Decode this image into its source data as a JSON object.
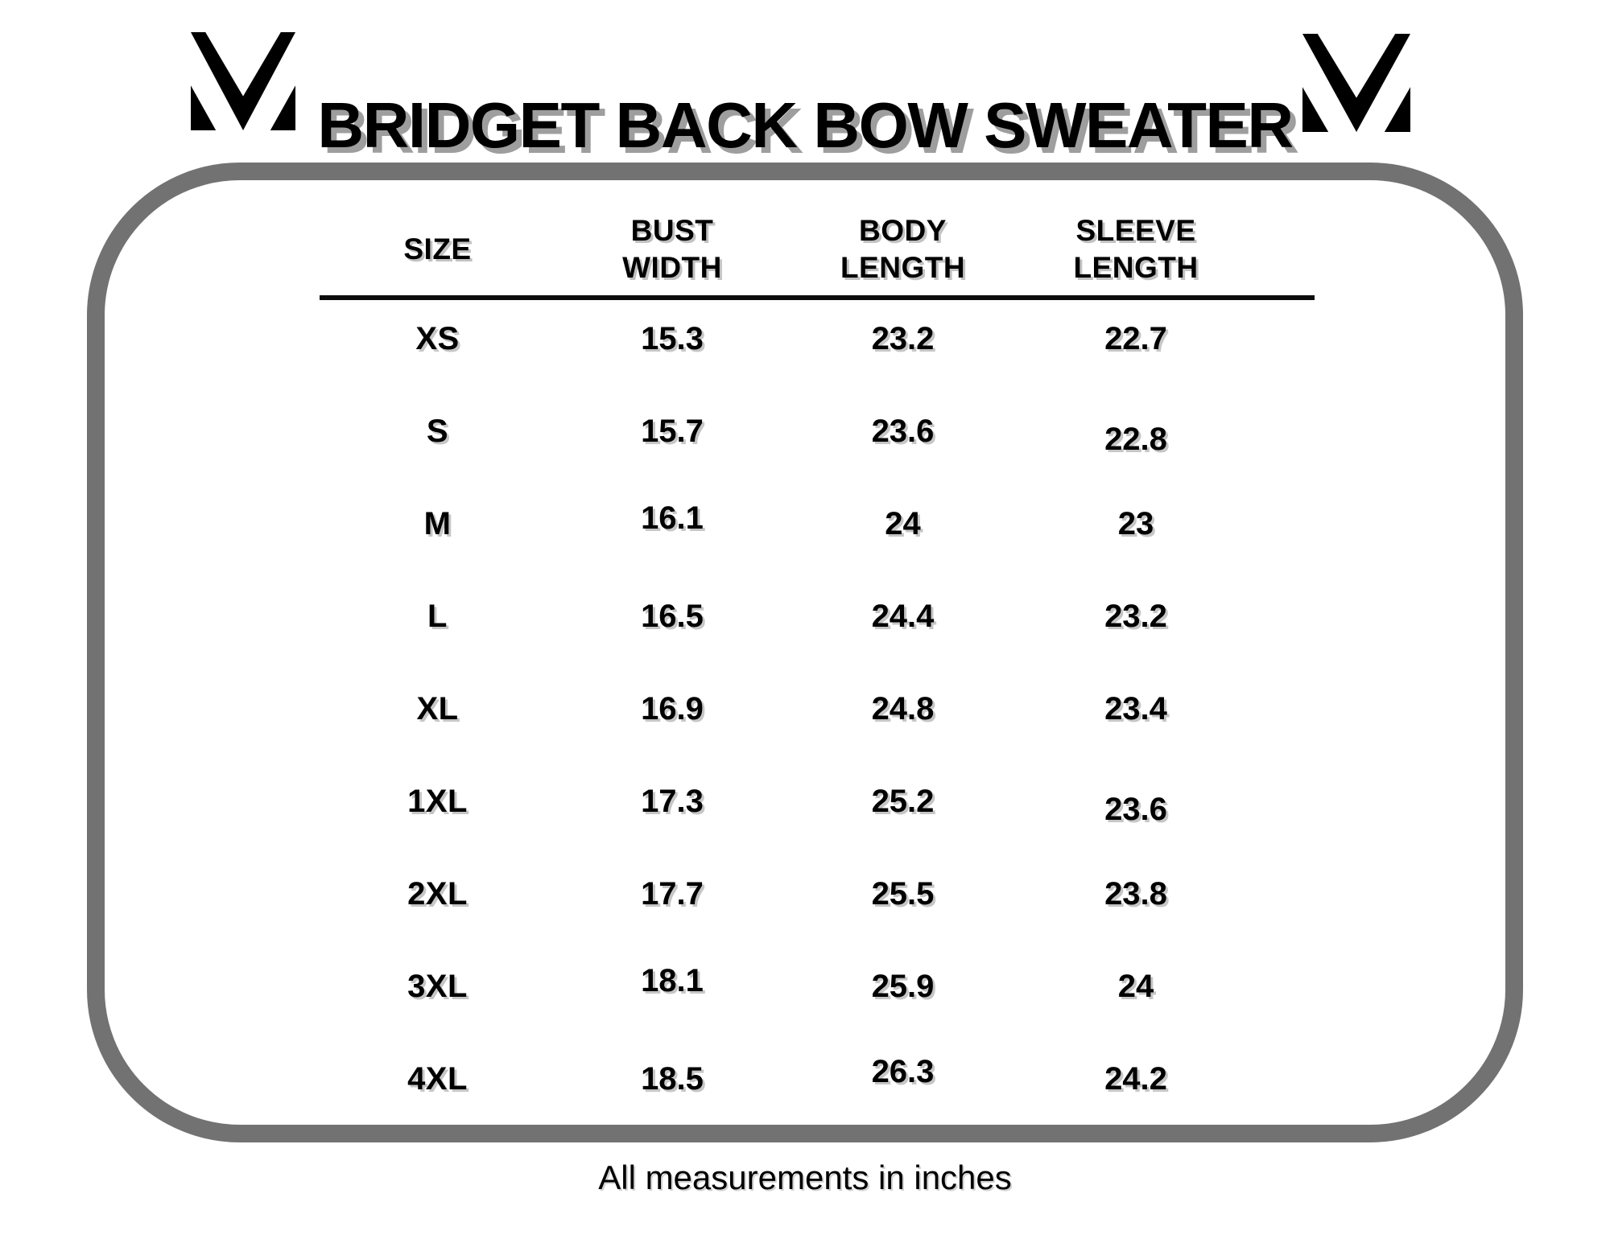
{
  "title": "BRIDGET BACK BOW SWEATER",
  "brand": {
    "logo": "m-monogram"
  },
  "footnote": "All measurements in inches",
  "colors": {
    "frame": "#727272",
    "text": "#000000",
    "title_shadow": "#9e9e9e",
    "background": "#ffffff"
  },
  "table": {
    "columns": [
      {
        "key": "size",
        "line1": "SIZE",
        "line2": ""
      },
      {
        "key": "bust",
        "line1": "BUST",
        "line2": "WIDTH"
      },
      {
        "key": "body",
        "line1": "BODY",
        "line2": "LENGTH"
      },
      {
        "key": "sleeve",
        "line1": "SLEEVE",
        "line2": "LENGTH"
      }
    ],
    "rows": [
      {
        "size": "XS",
        "bust": "15.3",
        "body": "23.2",
        "sleeve": "22.7"
      },
      {
        "size": "S",
        "bust": "15.7",
        "body": "23.6",
        "sleeve": "22.8"
      },
      {
        "size": "M",
        "bust": "16.1",
        "body": "24",
        "sleeve": "23"
      },
      {
        "size": "L",
        "bust": "16.5",
        "body": "24.4",
        "sleeve": "23.2"
      },
      {
        "size": "XL",
        "bust": "16.9",
        "body": "24.8",
        "sleeve": "23.4"
      },
      {
        "size": "1XL",
        "bust": "17.3",
        "body": "25.2",
        "sleeve": "23.6"
      },
      {
        "size": "2XL",
        "bust": "17.7",
        "body": "25.5",
        "sleeve": "23.8"
      },
      {
        "size": "3XL",
        "bust": "18.1",
        "body": "25.9",
        "sleeve": "24"
      },
      {
        "size": "4XL",
        "bust": "18.5",
        "body": "26.3",
        "sleeve": "24.2"
      }
    ]
  },
  "chart_data": {
    "type": "table",
    "title": "BRIDGET BACK BOW SWEATER",
    "columns": [
      "SIZE",
      "BUST WIDTH",
      "BODY LENGTH",
      "SLEEVE LENGTH"
    ],
    "rows": [
      [
        "XS",
        15.3,
        23.2,
        22.7
      ],
      [
        "S",
        15.7,
        23.6,
        22.8
      ],
      [
        "M",
        16.1,
        24,
        23
      ],
      [
        "L",
        16.5,
        24.4,
        23.2
      ],
      [
        "XL",
        16.9,
        24.8,
        23.4
      ],
      [
        "1XL",
        17.3,
        25.2,
        23.6
      ],
      [
        "2XL",
        17.7,
        25.5,
        23.8
      ],
      [
        "3XL",
        18.1,
        25.9,
        24
      ],
      [
        "4XL",
        18.5,
        26.3,
        24.2
      ]
    ],
    "units": "inches",
    "note": "All measurements in inches"
  }
}
